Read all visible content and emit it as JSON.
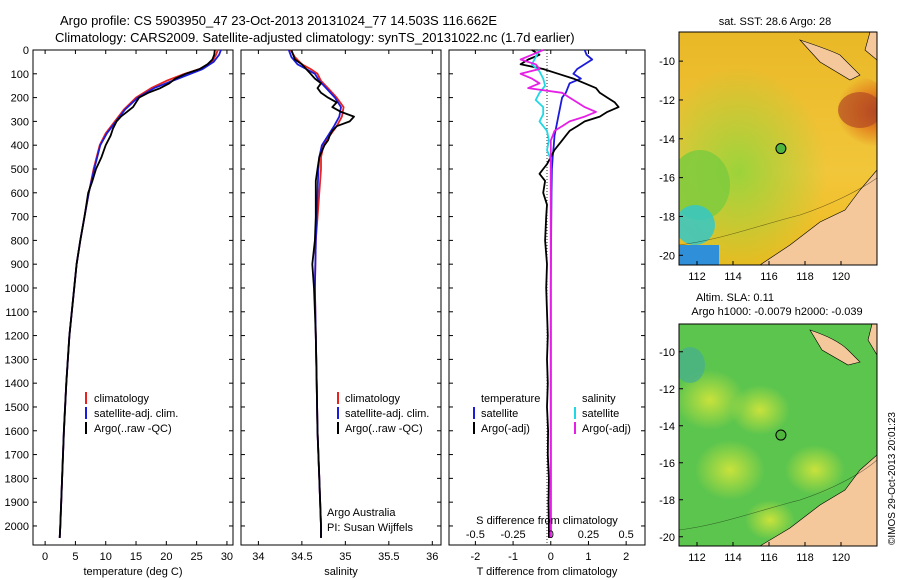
{
  "title_line1": "Argo profile: CS 5903950_47 23-Oct-2013 20131024_77 14.503S 116.662E",
  "title_line2": "Climatology: CARS2009. Satellite-adjusted climatology: synTS_20131022.nc (1.7d earlier)",
  "colors": {
    "clim": "#e8231f",
    "sat": "#1b1bdc",
    "argo": "#000000",
    "sat_s": "#1fd8e6",
    "argo_s": "#e61fe6",
    "land": "#f4c89a"
  },
  "chart_data": [
    {
      "type": "line",
      "id": "temperature",
      "xlabel": "temperature (deg C)",
      "ylabel": "",
      "xlim": [
        -2,
        31
      ],
      "ylim": [
        2080,
        0
      ],
      "xticks": [
        "0",
        "5",
        "10",
        "15",
        "20",
        "25",
        "30"
      ],
      "xtick_values": [
        0,
        5,
        10,
        15,
        20,
        25,
        30
      ],
      "yticks": [
        "0",
        "100",
        "200",
        "300",
        "400",
        "500",
        "600",
        "700",
        "800",
        "900",
        "1000",
        "1100",
        "1200",
        "1300",
        "1400",
        "1500",
        "1600",
        "1700",
        "1800",
        "1900",
        "2000"
      ],
      "ytick_values": [
        0,
        100,
        200,
        300,
        400,
        500,
        600,
        700,
        800,
        900,
        1000,
        1100,
        1200,
        1300,
        1400,
        1500,
        1600,
        1700,
        1800,
        1900,
        2000
      ],
      "legend": [
        "climatology",
        "satellite-adj. clim.",
        "Argo(..raw -QC)"
      ],
      "series": [
        {
          "name": "climatology",
          "color": "clim",
          "depth": [
            0,
            20,
            50,
            80,
            100,
            130,
            160,
            200,
            250,
            300,
            350,
            400,
            500,
            600,
            700,
            800,
            900,
            1000,
            1200,
            1400,
            1600,
            1800,
            2000,
            2050
          ],
          "values": [
            28.5,
            28.2,
            27.5,
            25.5,
            23,
            20,
            17.5,
            15,
            13,
            11.5,
            10,
            9,
            8,
            7.2,
            6.5,
            5.8,
            5.2,
            4.8,
            4,
            3.5,
            3.1,
            2.8,
            2.5,
            2.4
          ]
        },
        {
          "name": "satellite-adj. clim.",
          "color": "sat",
          "depth": [
            0,
            20,
            50,
            80,
            100,
            130,
            160,
            200,
            250,
            300,
            350,
            400,
            500,
            600,
            700,
            800,
            900,
            1000,
            1200,
            1400,
            1600,
            1800,
            2000,
            2050
          ],
          "values": [
            29,
            28.7,
            27.8,
            26,
            24,
            21,
            18,
            15.3,
            13.2,
            11.7,
            10.2,
            9.1,
            8.1,
            7.2,
            6.5,
            5.8,
            5.2,
            4.8,
            4,
            3.5,
            3.1,
            2.8,
            2.5,
            2.4
          ]
        },
        {
          "name": "Argo(..raw -QC)",
          "color": "argo",
          "depth": [
            0,
            20,
            40,
            60,
            80,
            100,
            120,
            140,
            160,
            180,
            200,
            220,
            240,
            260,
            280,
            300,
            330,
            360,
            400,
            450,
            500,
            550,
            600,
            700,
            800,
            900,
            1000,
            1200,
            1400,
            1600,
            1800,
            2000,
            2050
          ],
          "values": [
            28,
            27.9,
            27.6,
            26.8,
            25.5,
            23.2,
            21.5,
            20.5,
            19,
            17,
            15.5,
            15,
            14.5,
            13.5,
            12.5,
            11.8,
            11.2,
            10.8,
            10,
            9.3,
            8.4,
            7.8,
            7.1,
            6.5,
            5.8,
            5.2,
            4.8,
            4,
            3.5,
            3.1,
            2.8,
            2.5,
            2.4
          ]
        }
      ]
    },
    {
      "type": "line",
      "id": "salinity",
      "xlabel": "salinity",
      "xlim": [
        33.8,
        36.1
      ],
      "ylim": [
        2080,
        0
      ],
      "xticks": [
        "34",
        "34.5",
        "35",
        "35.5",
        "36"
      ],
      "xtick_values": [
        34,
        34.5,
        35,
        35.5,
        36
      ],
      "legend": [
        "climatology",
        "satellite-adj. clim.",
        "Argo(..raw -QC)"
      ],
      "annotation": [
        "Argo Australia",
        "PI: Susan Wijffels"
      ],
      "series": [
        {
          "name": "climatology",
          "color": "clim",
          "depth": [
            0,
            30,
            60,
            80,
            100,
            130,
            160,
            200,
            240,
            280,
            320,
            360,
            400,
            450,
            500,
            600,
            800,
            1000,
            1200,
            1400,
            1600,
            1800,
            2000,
            2050
          ],
          "values": [
            34.37,
            34.42,
            34.5,
            34.6,
            34.68,
            34.72,
            34.8,
            34.9,
            34.98,
            34.96,
            34.9,
            34.82,
            34.75,
            34.72,
            34.72,
            34.7,
            34.66,
            34.65,
            34.66,
            34.67,
            34.68,
            34.7,
            34.72,
            34.72
          ]
        },
        {
          "name": "satellite-adj. clim.",
          "color": "sat",
          "depth": [
            0,
            30,
            60,
            80,
            100,
            130,
            160,
            200,
            240,
            280,
            320,
            360,
            400,
            450,
            500,
            600,
            800,
            1000,
            1200,
            1400,
            1600,
            1800,
            2000,
            2050
          ],
          "values": [
            34.35,
            34.38,
            34.45,
            34.55,
            34.65,
            34.7,
            34.78,
            34.88,
            34.95,
            34.93,
            34.87,
            34.8,
            34.73,
            34.7,
            34.69,
            34.68,
            34.66,
            34.65,
            34.66,
            34.67,
            34.68,
            34.7,
            34.72,
            34.72
          ]
        },
        {
          "name": "Argo(..raw -QC)",
          "color": "argo",
          "depth": [
            0,
            20,
            40,
            60,
            80,
            100,
            120,
            140,
            160,
            180,
            200,
            220,
            240,
            260,
            280,
            300,
            320,
            340,
            360,
            380,
            400,
            450,
            500,
            550,
            600,
            700,
            800,
            900,
            1000,
            1200,
            1400,
            1600,
            1800,
            2000,
            2050
          ],
          "values": [
            34.38,
            34.4,
            34.42,
            34.5,
            34.55,
            34.6,
            34.65,
            34.72,
            34.68,
            34.72,
            34.8,
            34.9,
            34.85,
            34.95,
            35.1,
            35.05,
            34.9,
            34.85,
            34.82,
            34.8,
            34.76,
            34.7,
            34.68,
            34.66,
            34.66,
            34.66,
            34.65,
            34.62,
            34.64,
            34.66,
            34.67,
            34.68,
            34.7,
            34.72,
            34.72
          ]
        }
      ]
    },
    {
      "type": "line",
      "id": "difference",
      "xlabel": "T difference from climatology",
      "xlabel_top": "S difference from climatology",
      "xlim": [
        -2.7,
        2.5
      ],
      "ylim": [
        2080,
        0
      ],
      "xticks": [
        "-2",
        "-1",
        "0",
        "1",
        "2"
      ],
      "xtick_values": [
        -2,
        -1,
        0,
        1,
        2
      ],
      "xticks_top": [
        "-0.5",
        "-0.25",
        "0",
        "0.25",
        "0.5"
      ],
      "xtick_top_values": [
        -2,
        -1,
        0,
        1,
        2
      ],
      "legend_left_title": "temperature",
      "legend_right_title": "salinity",
      "legend_left": [
        "satellite",
        "Argo(-adj)"
      ],
      "legend_right": [
        "satellite",
        "Argo(-adj)"
      ],
      "series": [
        {
          "name": "T satellite",
          "color": "sat",
          "depth": [
            0,
            20,
            40,
            60,
            80,
            100,
            120,
            140,
            160,
            180,
            200,
            240,
            280,
            320,
            360,
            400,
            450,
            500,
            600,
            800,
            1000,
            1500,
            2000,
            2050
          ],
          "values": [
            0.9,
            0.95,
            1.1,
            0.9,
            0.7,
            0.6,
            0.8,
            0.5,
            0.45,
            0.4,
            0.3,
            0.25,
            0.2,
            0.15,
            0.1,
            0.08,
            0.05,
            0.03,
            0.02,
            0.01,
            0,
            0,
            0,
            0
          ]
        },
        {
          "name": "T Argo(-adj)",
          "color": "argo",
          "depth": [
            0,
            20,
            40,
            60,
            80,
            100,
            120,
            140,
            160,
            180,
            200,
            220,
            240,
            260,
            280,
            300,
            320,
            340,
            360,
            380,
            400,
            420,
            450,
            480,
            500,
            520,
            550,
            600,
            650,
            700,
            800,
            900,
            1000,
            1100,
            1200,
            1300,
            1400,
            1500,
            1600,
            1700,
            1800,
            1900,
            2000,
            2050
          ],
          "values": [
            -0.5,
            -0.3,
            -0.6,
            -0.8,
            -0.2,
            0.2,
            0.6,
            0.9,
            1.2,
            1.3,
            1.5,
            1.7,
            1.8,
            1.5,
            1.3,
            0.9,
            0.7,
            0.5,
            0.4,
            0.3,
            0.2,
            0.1,
            0,
            -0.1,
            -0.2,
            -0.3,
            -0.15,
            -0.2,
            -0.1,
            -0.12,
            -0.15,
            -0.1,
            -0.12,
            -0.1,
            -0.08,
            -0.1,
            -0.08,
            -0.1,
            -0.07,
            -0.08,
            -0.05,
            -0.06,
            -0.05,
            -0.05
          ]
        },
        {
          "name": "S satellite",
          "color": "sat_s",
          "depth": [
            0,
            30,
            60,
            90,
            120,
            150,
            180,
            210,
            240,
            270,
            300,
            340,
            380,
            420,
            460,
            500,
            600,
            800,
            1000,
            1500,
            2000,
            2050
          ],
          "values": [
            -0.3,
            -0.4,
            -0.5,
            -0.3,
            -0.2,
            -0.15,
            -0.3,
            -0.4,
            -0.2,
            -0.2,
            -0.3,
            -0.1,
            -0.05,
            -0.1,
            0,
            0,
            0,
            0,
            0,
            0,
            0,
            0
          ]
        },
        {
          "name": "S Argo(-adj)",
          "color": "argo_s",
          "depth": [
            0,
            20,
            40,
            60,
            80,
            100,
            120,
            140,
            160,
            180,
            200,
            220,
            240,
            260,
            280,
            300,
            320,
            340,
            360,
            380,
            400,
            450,
            500,
            600,
            800,
            1000,
            1500,
            2000,
            2050
          ],
          "values": [
            -0.2,
            -0.5,
            -0.8,
            -0.4,
            -0.3,
            -0.8,
            -0.5,
            -0.3,
            -0.6,
            0.3,
            0.5,
            0.7,
            0.9,
            1.2,
            0.9,
            0.5,
            0.3,
            0.1,
            0.05,
            0,
            0,
            0,
            0,
            0,
            0,
            0,
            0,
            0,
            0
          ]
        }
      ]
    },
    {
      "type": "heatmap",
      "id": "sst_map",
      "title": "sat. SST: 28.6  Argo: 28",
      "xticks": [
        "112",
        "114",
        "116",
        "118",
        "120"
      ],
      "xtick_values": [
        112,
        114,
        116,
        118,
        120
      ],
      "yticks": [
        "-10",
        "-12",
        "-14",
        "-16",
        "-18",
        "-20"
      ],
      "ytick_values": [
        -10,
        -12,
        -14,
        -16,
        -18,
        -20
      ],
      "xlim": [
        111,
        122
      ],
      "ylim": [
        -20.5,
        -8.5
      ],
      "marker": {
        "lon": 116.662,
        "lat": -14.503
      }
    },
    {
      "type": "heatmap",
      "id": "sla_map",
      "title_line1": "Altim. SLA: 0.11",
      "title_line2": "Argo h1000: -0.0079  h2000: -0.039",
      "xticks": [
        "112",
        "114",
        "116",
        "118",
        "120"
      ],
      "xtick_values": [
        112,
        114,
        116,
        118,
        120
      ],
      "yticks": [
        "-10",
        "-12",
        "-14",
        "-16",
        "-18",
        "-20"
      ],
      "ytick_values": [
        -10,
        -12,
        -14,
        -16,
        -18,
        -20
      ],
      "xlim": [
        111,
        122
      ],
      "ylim": [
        -20.5,
        -8.5
      ],
      "marker": {
        "lon": 116.662,
        "lat": -14.503
      }
    }
  ],
  "footer": "©IMOS 29-Oct-2013 20:01:23"
}
